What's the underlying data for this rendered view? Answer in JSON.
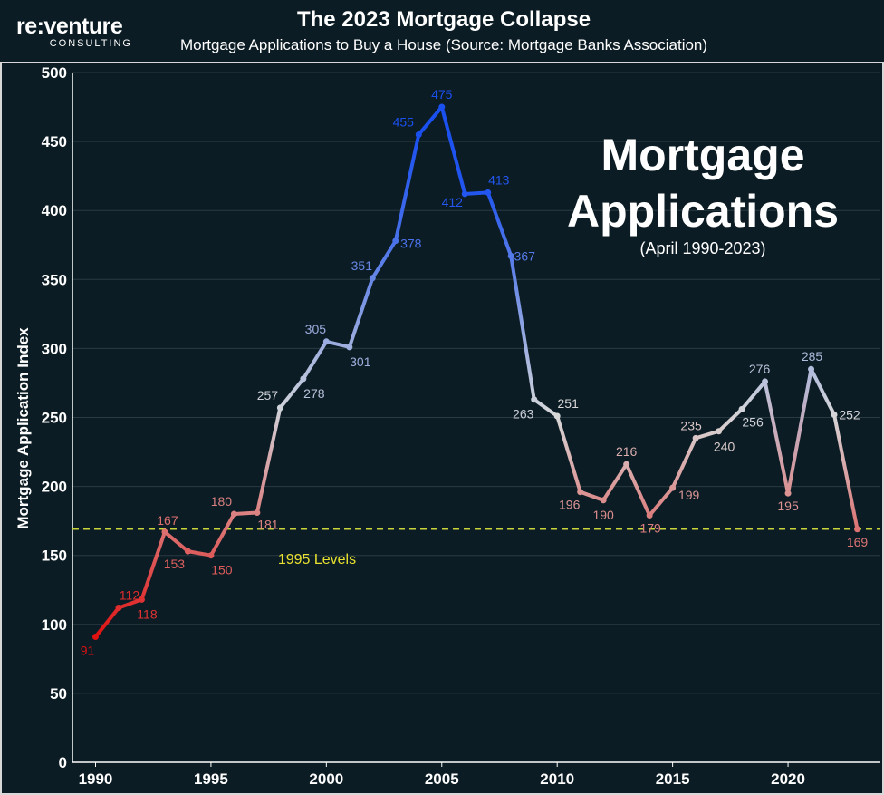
{
  "header": {
    "title": "The 2023 Mortgage Collapse",
    "subtitle": "Mortgage Applications to Buy a House (Source: Mortgage Banks Association)",
    "logo_word": "re:venture",
    "logo_sub": "CONSULTING"
  },
  "chart_data": {
    "type": "line",
    "title": "The 2023 Mortgage Collapse",
    "subtitle": "Mortgage Applications to Buy a House (Source: Mortgage Banks Association)",
    "ylabel": "Mortgage Application Index",
    "xlabel": "",
    "ylim": [
      0,
      500
    ],
    "xlim": [
      1989,
      2024
    ],
    "y_ticks": [
      0,
      50,
      100,
      150,
      200,
      250,
      300,
      350,
      400,
      450,
      500
    ],
    "x_ticks": [
      1990,
      1995,
      2000,
      2005,
      2010,
      2015,
      2020
    ],
    "grid": "horizontal",
    "annotation_title_line1": "Mortgage",
    "annotation_title_line2": "Applications",
    "annotation_subtitle": "(April 1990-2023)",
    "reference_line": {
      "value": 169,
      "label": "1995 Levels",
      "color": "#c8d43a"
    },
    "colors": {
      "low": "#e01010",
      "mid": "#d8d8d8",
      "high": "#1a50f0",
      "background": "#0c1c24"
    },
    "series": [
      {
        "x": [
          1990,
          1991,
          1992,
          1993,
          1994,
          1995,
          1996,
          1997,
          1998,
          1999,
          2000,
          2001,
          2002,
          2003,
          2004,
          2005,
          2006,
          2007,
          2008,
          2009,
          2010,
          2011,
          2012,
          2013,
          2014,
          2015,
          2016,
          2017,
          2018,
          2019,
          2020,
          2021,
          2022,
          2023
        ],
        "values": [
          91,
          112,
          118,
          167,
          153,
          150,
          180,
          181,
          257,
          278,
          305,
          301,
          351,
          378,
          455,
          475,
          412,
          413,
          367,
          263,
          251,
          196,
          190,
          216,
          179,
          199,
          235,
          240,
          256,
          276,
          195,
          285,
          252,
          169
        ],
        "labels": [
          "91",
          "112",
          "118",
          "167",
          "153",
          "150",
          "180",
          "181",
          "257",
          "278",
          "305",
          "301",
          "351",
          "378",
          "455",
          "475",
          "412",
          "413",
          "367",
          "263",
          "251",
          "196",
          "190",
          "216",
          "179",
          "199",
          "235",
          "240",
          "256",
          "276",
          "195",
          "285",
          "252",
          "169"
        ]
      }
    ]
  }
}
